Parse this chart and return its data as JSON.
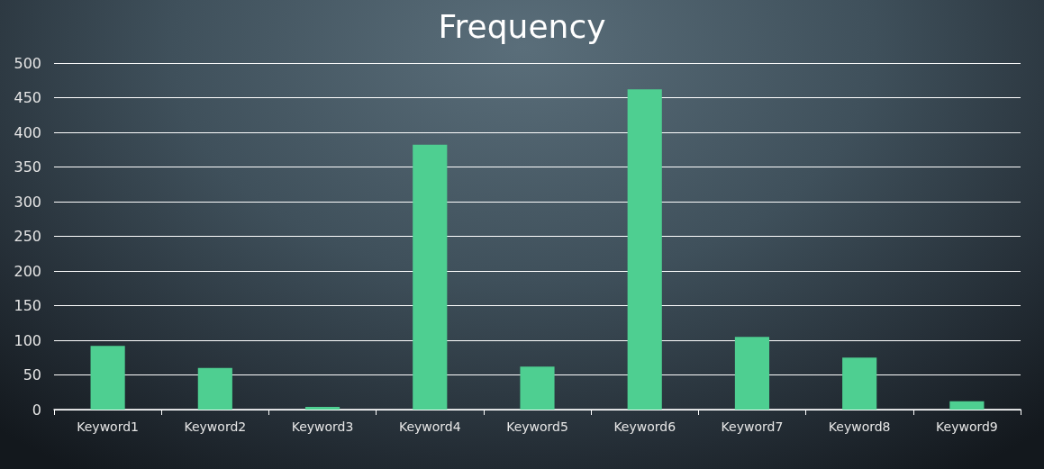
{
  "chart_data": {
    "type": "bar",
    "title": "Frequency",
    "categories": [
      "Keyword1",
      "Keyword2",
      "Keyword3",
      "Keyword4",
      "Keyword5",
      "Keyword6",
      "Keyword7",
      "Keyword8",
      "Keyword9"
    ],
    "values": [
      92,
      60,
      4,
      382,
      62,
      462,
      105,
      75,
      12
    ],
    "color": "#4ecf91",
    "ylim": [
      0,
      500
    ],
    "yticks": [
      0,
      50,
      100,
      150,
      200,
      250,
      300,
      350,
      400,
      450,
      500
    ],
    "grid": "y"
  }
}
